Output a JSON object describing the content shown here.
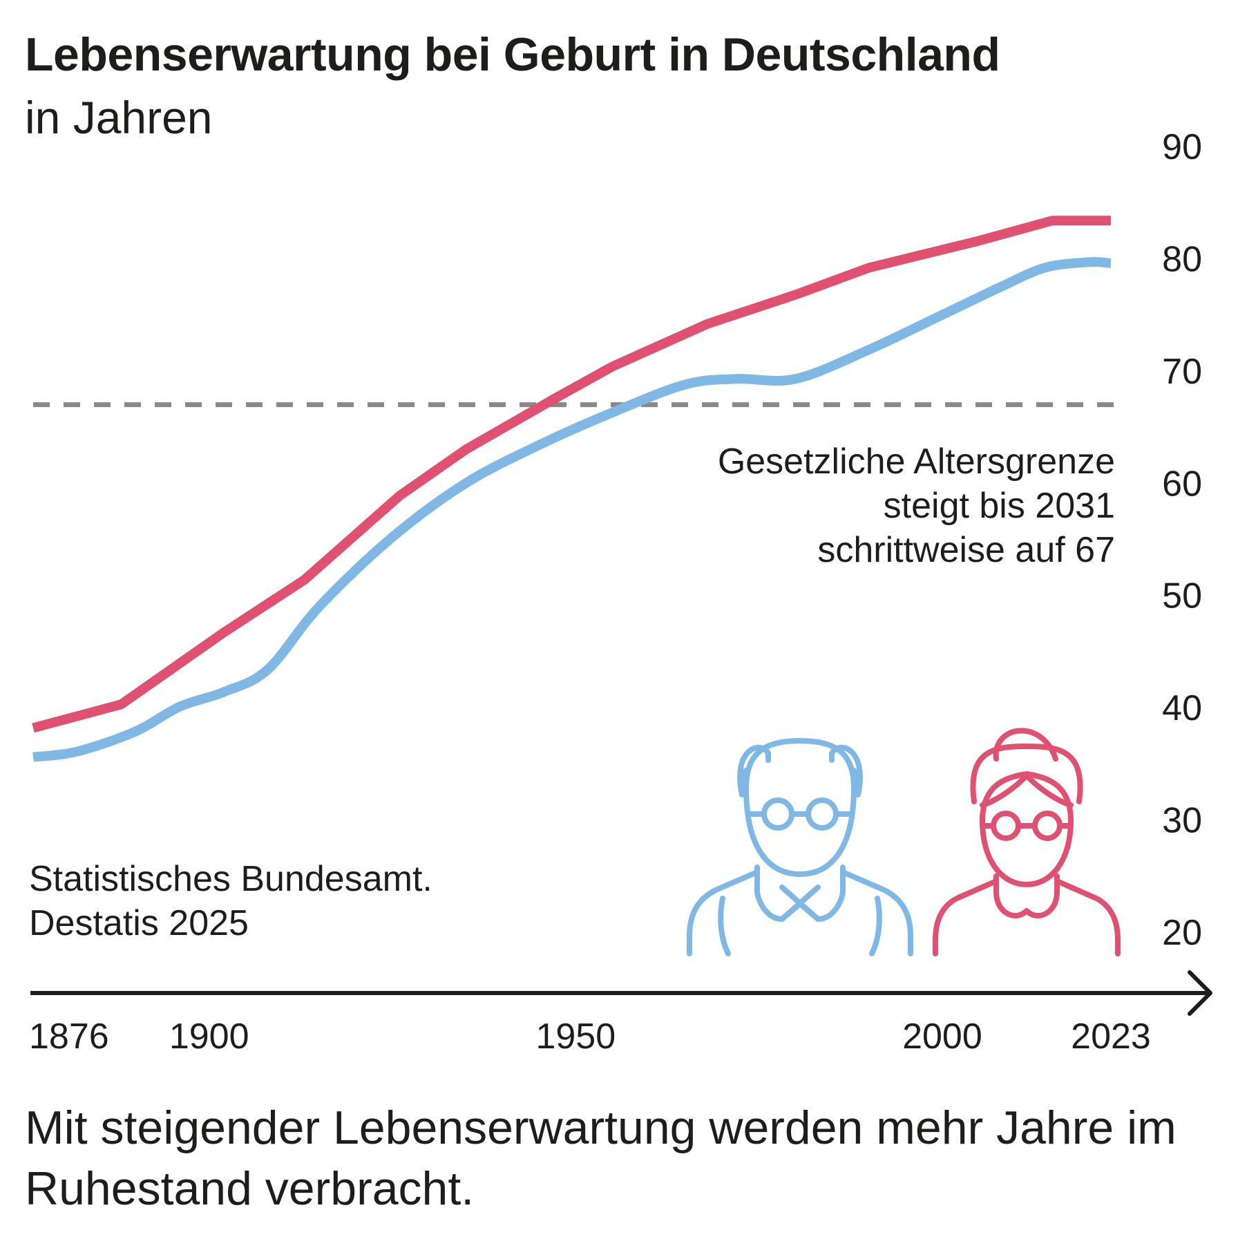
{
  "title": "Lebenserwartung bei Geburt in Deutschland",
  "subtitle": "in Jahren",
  "source": [
    "Statistisches Bundesamt.",
    "Destatis 2025"
  ],
  "caption": "Mit steigender Lebenserwartung werden mehr Jahre im Ruhestand verbracht.",
  "annotation": [
    "Gesetzliche Altersgrenze",
    "steigt bis 2031",
    "schrittweise auf 67"
  ],
  "colors": {
    "female": "#e05070",
    "male": "#7fb8e4",
    "threshold": "#888888",
    "axis": "#1d1d1b"
  },
  "icons": [
    "old-man-icon",
    "old-woman-icon"
  ],
  "chart_data": {
    "type": "line",
    "xlim": [
      1876,
      2023
    ],
    "ylim": [
      20,
      90
    ],
    "x_ticks": [
      "1876",
      "1900",
      "1950",
      "2000",
      "2023"
    ],
    "x_tick_values": [
      1876,
      1900,
      1950,
      2000,
      2023
    ],
    "y_ticks": [
      "20",
      "30",
      "40",
      "50",
      "60",
      "70",
      "80",
      "90"
    ],
    "y_tick_values": [
      20,
      30,
      40,
      50,
      60,
      70,
      80,
      90
    ],
    "threshold": 67,
    "grid": false,
    "series": [
      {
        "x": [
          1876,
          1888,
          1902,
          1913,
          1926,
          1935,
          1947,
          1955,
          1968,
          1980,
          1990,
          2005,
          2015,
          2023
        ],
        "y": [
          38.2,
          40.3,
          46.7,
          51.4,
          58.9,
          63.0,
          67.5,
          70.4,
          74.2,
          76.8,
          79.2,
          81.6,
          83.4,
          83.4
        ]
      },
      {
        "x": [
          1876,
          1882,
          1890,
          1896,
          1902,
          1908,
          1915,
          1925,
          1935,
          1945,
          1955,
          1965,
          1972,
          1980,
          1990,
          2000,
          2008,
          2014,
          2020,
          2023
        ],
        "y": [
          35.6,
          36.1,
          37.9,
          40.1,
          41.4,
          43.4,
          49.0,
          55.2,
          60.0,
          63.4,
          66.3,
          68.8,
          69.3,
          69.3,
          71.9,
          75.0,
          77.5,
          79.2,
          79.7,
          79.6
        ]
      }
    ]
  }
}
